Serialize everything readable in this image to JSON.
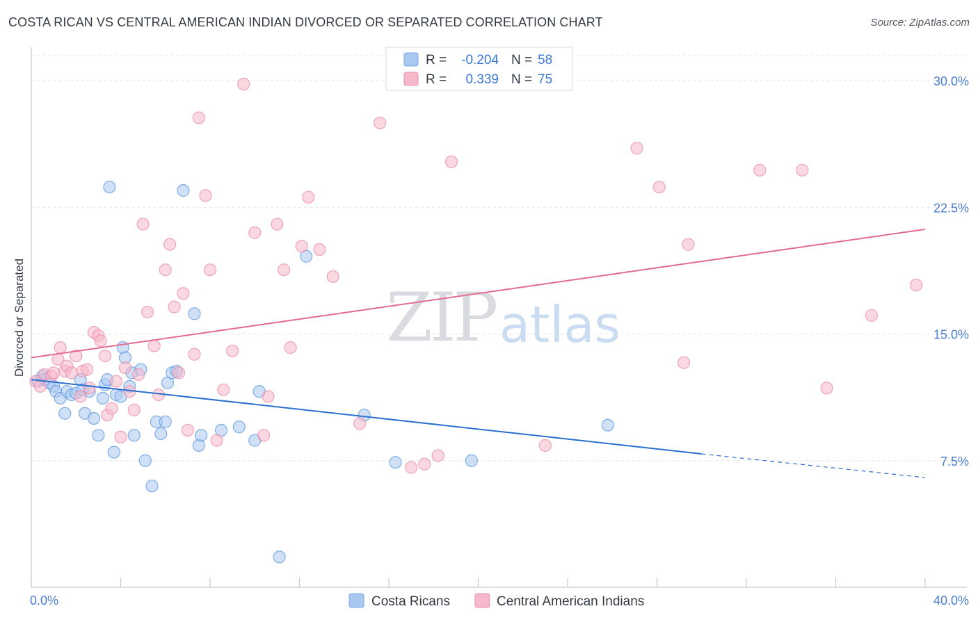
{
  "header": {
    "title": "COSTA RICAN VS CENTRAL AMERICAN INDIAN DIVORCED OR SEPARATED CORRELATION CHART",
    "source": "Source: ZipAtlas.com"
  },
  "watermark": {
    "zip": "ZIP",
    "atlas": "atlas"
  },
  "legend": {
    "rows": [
      {
        "r_label": "R =",
        "r_value": "-0.204",
        "n_label": "N =",
        "n_value": "58",
        "color": "#a9c8f0"
      },
      {
        "r_label": "R =",
        "r_value": "0.339",
        "n_label": "N =",
        "n_value": "75",
        "color": "#f6b8cb"
      }
    ]
  },
  "bottom_legend": {
    "items": [
      {
        "label": "Costa Ricans",
        "color": "#a9c8f0"
      },
      {
        "label": "Central American Indians",
        "color": "#f6b8cb"
      }
    ]
  },
  "chart_data": {
    "type": "scatter",
    "title": "COSTA RICAN VS CENTRAL AMERICAN INDIAN DIVORCED OR SEPARATED CORRELATION CHART",
    "ylabel": "Divorced or Separated",
    "xlabel": "",
    "xlim": [
      0,
      40
    ],
    "ylim": [
      0,
      31.5
    ],
    "x_tick_labels": [
      "0.0%",
      "40.0%"
    ],
    "y_ticks": [
      7.5,
      15.0,
      22.5,
      30.0
    ],
    "y_tick_labels": [
      "7.5%",
      "15.0%",
      "22.5%",
      "30.0%"
    ],
    "grid": true,
    "legend_position": "top-center",
    "series": [
      {
        "name": "Costa Ricans",
        "color": "#5a96e0",
        "fill": "#a9c8f0",
        "trend": {
          "x": [
            0,
            30
          ],
          "y": [
            12.3,
            7.9
          ],
          "dashed_to": [
            40,
            6.5
          ],
          "color": "#2a6fd0"
        },
        "points": [
          [
            0.3,
            12.2
          ],
          [
            0.5,
            12.5
          ],
          [
            0.6,
            12.3
          ],
          [
            0.8,
            12.1
          ],
          [
            1.0,
            11.9
          ],
          [
            1.1,
            11.6
          ],
          [
            1.3,
            11.2
          ],
          [
            1.5,
            10.3
          ],
          [
            1.6,
            11.6
          ],
          [
            1.8,
            11.4
          ],
          [
            2.0,
            11.5
          ],
          [
            2.2,
            12.3
          ],
          [
            2.3,
            11.7
          ],
          [
            2.4,
            10.3
          ],
          [
            2.6,
            11.6
          ],
          [
            2.8,
            10.0
          ],
          [
            3.0,
            9.0
          ],
          [
            3.2,
            11.2
          ],
          [
            3.3,
            12.0
          ],
          [
            3.4,
            12.3
          ],
          [
            3.5,
            23.7
          ],
          [
            3.7,
            8.0
          ],
          [
            3.8,
            11.4
          ],
          [
            4.0,
            11.3
          ],
          [
            4.1,
            14.2
          ],
          [
            4.2,
            13.6
          ],
          [
            4.4,
            11.9
          ],
          [
            4.5,
            12.7
          ],
          [
            4.6,
            9.0
          ],
          [
            4.9,
            12.9
          ],
          [
            5.1,
            7.5
          ],
          [
            5.4,
            6.0
          ],
          [
            5.6,
            9.8
          ],
          [
            5.8,
            9.1
          ],
          [
            6.0,
            9.8
          ],
          [
            6.1,
            12.1
          ],
          [
            6.3,
            12.7
          ],
          [
            6.5,
            12.8
          ],
          [
            6.8,
            23.5
          ],
          [
            7.3,
            16.2
          ],
          [
            7.5,
            8.4
          ],
          [
            7.6,
            9.0
          ],
          [
            8.5,
            9.3
          ],
          [
            9.3,
            9.5
          ],
          [
            10.0,
            8.7
          ],
          [
            10.2,
            11.6
          ],
          [
            11.1,
            1.8
          ],
          [
            12.3,
            19.6
          ],
          [
            14.9,
            10.2
          ],
          [
            16.3,
            7.4
          ],
          [
            19.7,
            7.5
          ],
          [
            25.8,
            9.6
          ]
        ]
      },
      {
        "name": "Central American Indians",
        "color": "#ec8aa8",
        "fill": "#f6b8cb",
        "trend": {
          "x": [
            0,
            40
          ],
          "y": [
            13.6,
            21.2
          ],
          "color": "#e46a92"
        },
        "points": [
          [
            0.2,
            12.2
          ],
          [
            0.4,
            11.9
          ],
          [
            0.6,
            12.6
          ],
          [
            0.9,
            12.5
          ],
          [
            1.0,
            12.7
          ],
          [
            1.2,
            13.5
          ],
          [
            1.3,
            14.2
          ],
          [
            1.5,
            12.8
          ],
          [
            1.6,
            13.1
          ],
          [
            1.8,
            12.7
          ],
          [
            2.0,
            13.7
          ],
          [
            2.2,
            11.3
          ],
          [
            2.3,
            12.8
          ],
          [
            2.5,
            12.9
          ],
          [
            2.6,
            11.8
          ],
          [
            2.8,
            15.1
          ],
          [
            3.0,
            14.9
          ],
          [
            3.1,
            14.6
          ],
          [
            3.3,
            13.7
          ],
          [
            3.4,
            10.2
          ],
          [
            3.6,
            10.6
          ],
          [
            3.8,
            12.2
          ],
          [
            4.0,
            8.9
          ],
          [
            4.2,
            13.0
          ],
          [
            4.4,
            11.6
          ],
          [
            4.6,
            10.5
          ],
          [
            4.8,
            12.6
          ],
          [
            5.0,
            21.5
          ],
          [
            5.2,
            16.3
          ],
          [
            5.5,
            14.3
          ],
          [
            5.7,
            11.4
          ],
          [
            6.0,
            18.8
          ],
          [
            6.2,
            20.3
          ],
          [
            6.4,
            16.6
          ],
          [
            6.6,
            12.7
          ],
          [
            6.8,
            17.4
          ],
          [
            7.0,
            9.3
          ],
          [
            7.3,
            13.8
          ],
          [
            7.5,
            27.8
          ],
          [
            7.8,
            23.2
          ],
          [
            8.0,
            18.8
          ],
          [
            8.3,
            8.7
          ],
          [
            8.6,
            11.7
          ],
          [
            9.0,
            14.0
          ],
          [
            9.5,
            29.8
          ],
          [
            10.0,
            21.0
          ],
          [
            10.4,
            9.0
          ],
          [
            10.6,
            11.3
          ],
          [
            11.0,
            21.5
          ],
          [
            11.3,
            18.8
          ],
          [
            11.6,
            14.2
          ],
          [
            12.1,
            20.2
          ],
          [
            12.4,
            23.1
          ],
          [
            12.9,
            20.0
          ],
          [
            13.5,
            18.4
          ],
          [
            14.7,
            9.7
          ],
          [
            15.6,
            27.5
          ],
          [
            17.0,
            7.1
          ],
          [
            17.6,
            7.3
          ],
          [
            18.2,
            7.8
          ],
          [
            18.8,
            25.2
          ],
          [
            23.0,
            8.4
          ],
          [
            27.1,
            26.0
          ],
          [
            28.1,
            23.7
          ],
          [
            29.2,
            13.3
          ],
          [
            29.4,
            20.3
          ],
          [
            32.6,
            24.7
          ],
          [
            34.5,
            24.7
          ],
          [
            35.6,
            11.8
          ],
          [
            37.6,
            16.1
          ],
          [
            39.6,
            17.9
          ]
        ]
      }
    ]
  }
}
